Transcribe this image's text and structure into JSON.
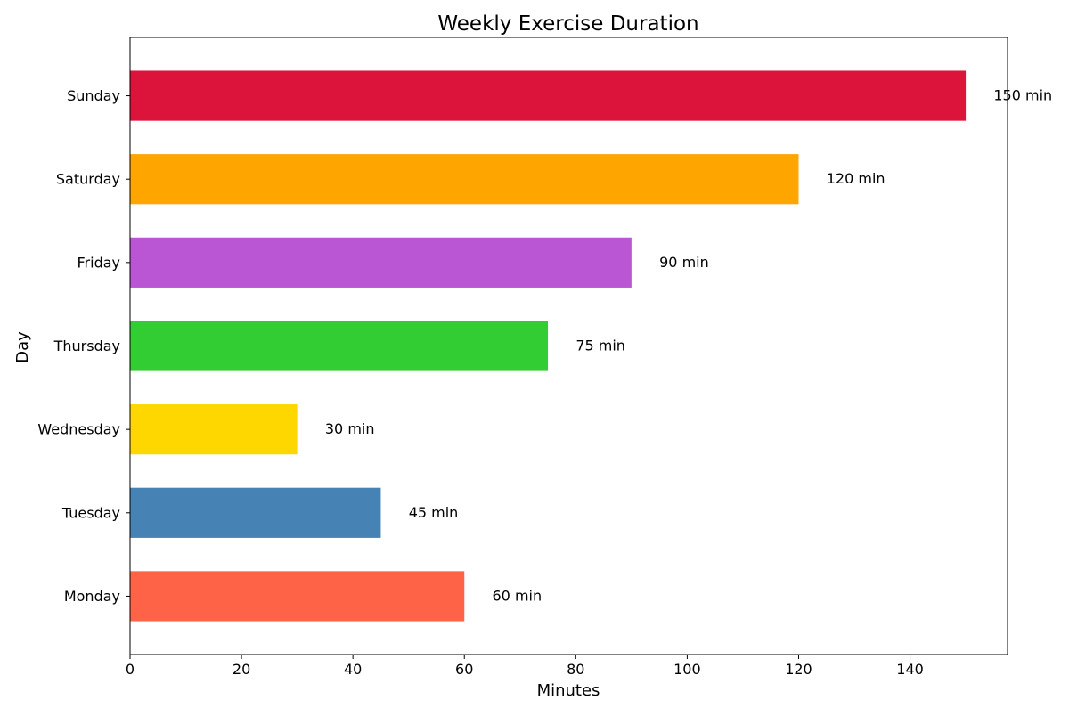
{
  "chart_data": {
    "type": "bar",
    "orientation": "horizontal",
    "title": "Weekly Exercise Duration",
    "xlabel": "Minutes",
    "ylabel": "Day",
    "categories": [
      "Monday",
      "Tuesday",
      "Wednesday",
      "Thursday",
      "Friday",
      "Saturday",
      "Sunday"
    ],
    "values": [
      60,
      45,
      30,
      75,
      90,
      120,
      150
    ],
    "value_labels": [
      "60 min",
      "45 min",
      "30 min",
      "75 min",
      "90 min",
      "120 min",
      "150 min"
    ],
    "colors": [
      "#ff6347",
      "#4682b4",
      "#ffd700",
      "#32cd32",
      "#ba55d3",
      "#ffa500",
      "#dc143c"
    ],
    "xlim": [
      0,
      157.5
    ],
    "xticks": [
      0,
      20,
      40,
      60,
      80,
      100,
      120,
      140
    ],
    "grid": false,
    "legend": "none"
  }
}
